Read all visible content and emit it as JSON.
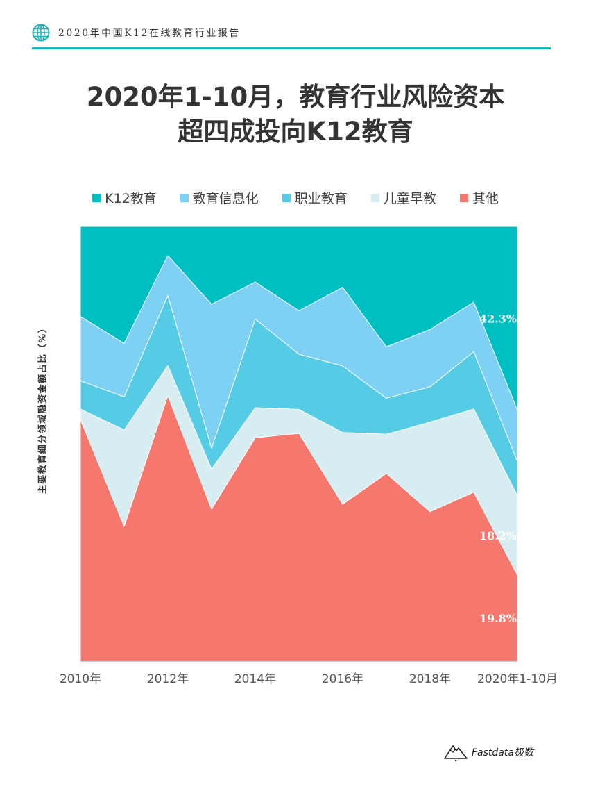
{
  "header": {
    "report_title": "2020年中国K12在线教育行业报告",
    "icon": "globe-icon"
  },
  "colors": {
    "accent": "#19b6b9",
    "K12": "#00bfc2",
    "info": "#7fd0f5",
    "vocational": "#55cbe6",
    "early": "#d8edf2",
    "other": "#f6776d"
  },
  "title": {
    "line1": "2020年1-10月，教育行业风险资本",
    "line2": "超四成投向K12教育"
  },
  "chart_data": {
    "type": "area",
    "stacked": true,
    "percent": true,
    "categories": [
      "2010年",
      "2011",
      "2012年",
      "2013",
      "2014年",
      "2015",
      "2016年",
      "2017",
      "2018年",
      "2019",
      "2020年1-10月"
    ],
    "x_tick_labels": [
      "2010年",
      "2012年",
      "2014年",
      "2016年",
      "2018年",
      "2020年1-10月"
    ],
    "ylabel": "主要教育细分领域融资金额占比（%）",
    "ylim": [
      0,
      100
    ],
    "legend_position": "top",
    "series": [
      {
        "name": "其他",
        "color_key": "other",
        "values": [
          55.6,
          31.0,
          61.1,
          35.0,
          51.4,
          52.4,
          36.1,
          43.2,
          34.4,
          38.9,
          19.8
        ]
      },
      {
        "name": "儿童早教",
        "color_key": "early",
        "values": [
          2.4,
          22.2,
          6.9,
          9.2,
          6.9,
          5.5,
          16.5,
          9.0,
          20.6,
          19.1,
          18.2
        ]
      },
      {
        "name": "职业教育",
        "color_key": "vocational",
        "values": [
          6.5,
          7.6,
          16.1,
          4.8,
          20.4,
          12.7,
          15.3,
          8.3,
          8.1,
          13.2,
          7.9
        ]
      },
      {
        "name": "教育信息化",
        "color_key": "info",
        "values": [
          14.8,
          12.3,
          9.2,
          33.1,
          8.5,
          10.0,
          18.1,
          11.8,
          13.2,
          11.4,
          11.8
        ]
      },
      {
        "name": "K12教育",
        "color_key": "K12",
        "values": [
          20.7,
          26.9,
          6.7,
          17.9,
          12.8,
          19.4,
          14.0,
          27.7,
          23.7,
          17.4,
          42.3
        ]
      }
    ],
    "legend_order": [
      "K12教育",
      "教育信息化",
      "职业教育",
      "儿童早教",
      "其他"
    ],
    "annotations": [
      {
        "series": "K12教育",
        "text": "42.3%"
      },
      {
        "series": "儿童早教",
        "text": "18.2%"
      },
      {
        "series": "其他",
        "text": "19.8%"
      }
    ]
  },
  "footer": {
    "brand": "Fastdata极数",
    "icon": "mountain-logo-icon"
  }
}
